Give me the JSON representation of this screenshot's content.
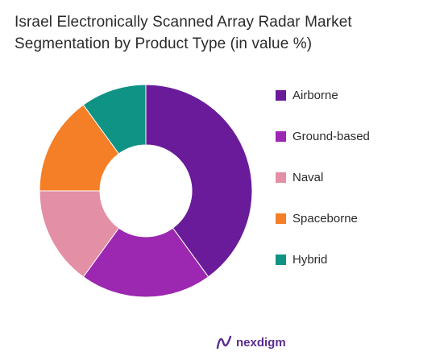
{
  "title_line1": "Israel Electronically Scanned Array Radar Market",
  "title_line2": "Segmentation by Product Type (in value %)",
  "chart_data": {
    "type": "pie",
    "donut": true,
    "title": "Israel Electronically Scanned Array Radar Market Segmentation by Product Type (in value %)",
    "categories": [
      "Airborne",
      "Ground-based",
      "Naval",
      "Spaceborne",
      "Hybrid"
    ],
    "values": [
      40,
      20,
      15,
      15,
      10
    ],
    "colors": [
      "#6a1b9a",
      "#9c27b0",
      "#e38fa6",
      "#f57f26",
      "#0e9384"
    ],
    "legend_position": "right"
  },
  "logo": {
    "text": "nexdigm",
    "color": "#5a2d91"
  }
}
